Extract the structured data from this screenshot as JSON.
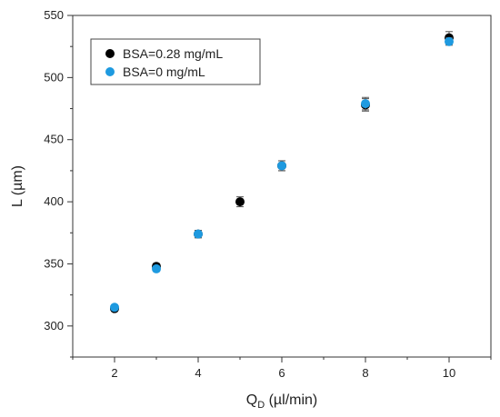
{
  "chart_data": {
    "type": "scatter",
    "xlabel_main": "Q",
    "xlabel_sub": "D",
    "xlabel_rest": " (µl/min)",
    "ylabel": "L (µm)",
    "xlim": [
      1,
      11
    ],
    "ylim": [
      275,
      550
    ],
    "xticks": [
      2,
      4,
      6,
      8,
      10
    ],
    "yticks": [
      300,
      350,
      400,
      450,
      500,
      550
    ],
    "grid": false,
    "legend_position": "top-left",
    "series": [
      {
        "name": "BSA=0.28 mg/mL",
        "color": "#000000",
        "points": [
          {
            "x": 2,
            "y": 314,
            "err": 2
          },
          {
            "x": 3,
            "y": 348,
            "err": 2
          },
          {
            "x": 4,
            "y": 374,
            "err": 3
          },
          {
            "x": 5,
            "y": 400,
            "err": 4
          },
          {
            "x": 6,
            "y": 429,
            "err": 4
          },
          {
            "x": 8,
            "y": 478,
            "err": 5
          },
          {
            "x": 10,
            "y": 532,
            "err": 5
          }
        ]
      },
      {
        "name": "BSA=0 mg/mL",
        "color": "#1e9ae0",
        "points": [
          {
            "x": 2,
            "y": 315,
            "err": 2
          },
          {
            "x": 3,
            "y": 346,
            "err": 2
          },
          {
            "x": 4,
            "y": 374,
            "err": 3
          },
          {
            "x": 6,
            "y": 429,
            "err": 4
          },
          {
            "x": 8,
            "y": 479,
            "err": 5
          },
          {
            "x": 10,
            "y": 529,
            "err": 3
          }
        ]
      }
    ]
  }
}
